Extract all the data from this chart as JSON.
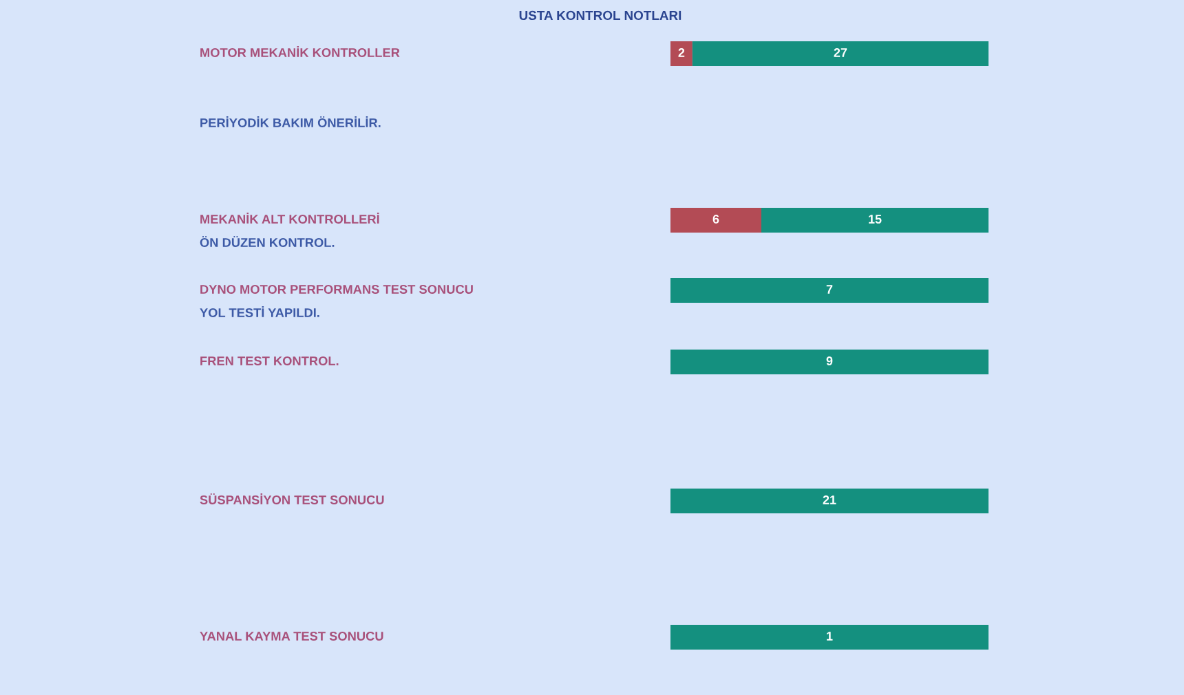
{
  "chart_data": [
    {
      "type": "bar",
      "title": "USTA KONTROL NOTLARI",
      "orientation": "horizontal",
      "stacked": true,
      "data_labels": true,
      "tick_labels": "y",
      "categories": [
        "MOTOR MEKANİK KONTROLLER"
      ],
      "series": [
        {
          "color": "#b34b55",
          "values": [
            2
          ]
        },
        {
          "color": "#14907f",
          "values": [
            27
          ]
        }
      ],
      "annotations": [
        "PERİYODİK BAKIM ÖNERİLİR."
      ]
    },
    {
      "type": "bar",
      "orientation": "horizontal",
      "stacked": true,
      "data_labels": true,
      "tick_labels": "y",
      "categories": [
        "MEKANİK ALT KONTROLLERİ"
      ],
      "series": [
        {
          "color": "#b34b55",
          "values": [
            6
          ]
        },
        {
          "color": "#14907f",
          "values": [
            15
          ]
        }
      ],
      "annotations": [
        "ÖN DÜZEN KONTROL."
      ]
    },
    {
      "type": "bar",
      "orientation": "horizontal",
      "stacked": true,
      "data_labels": true,
      "tick_labels": "y",
      "categories": [
        "DYNO MOTOR PERFORMANS TEST SONUCU"
      ],
      "series": [
        {
          "color": "#14907f",
          "values": [
            7
          ]
        }
      ],
      "annotations": [
        "YOL TESTİ YAPILDI."
      ]
    },
    {
      "type": "bar",
      "orientation": "horizontal",
      "stacked": true,
      "data_labels": true,
      "tick_labels": "y",
      "categories": [
        "FREN TEST KONTROL."
      ],
      "series": [
        {
          "color": "#14907f",
          "values": [
            9
          ]
        }
      ]
    },
    {
      "type": "bar",
      "orientation": "horizontal",
      "stacked": true,
      "data_labels": true,
      "tick_labels": "y",
      "categories": [
        "SÜSPANSİYON TEST SONUCU"
      ],
      "series": [
        {
          "color": "#14907f",
          "values": [
            21
          ]
        }
      ]
    },
    {
      "type": "bar",
      "orientation": "horizontal",
      "stacked": true,
      "data_labels": true,
      "tick_labels": "y",
      "categories": [
        "YANAL KAYMA TEST SONUCU"
      ],
      "series": [
        {
          "color": "#14907f",
          "values": [
            1
          ]
        }
      ]
    }
  ]
}
